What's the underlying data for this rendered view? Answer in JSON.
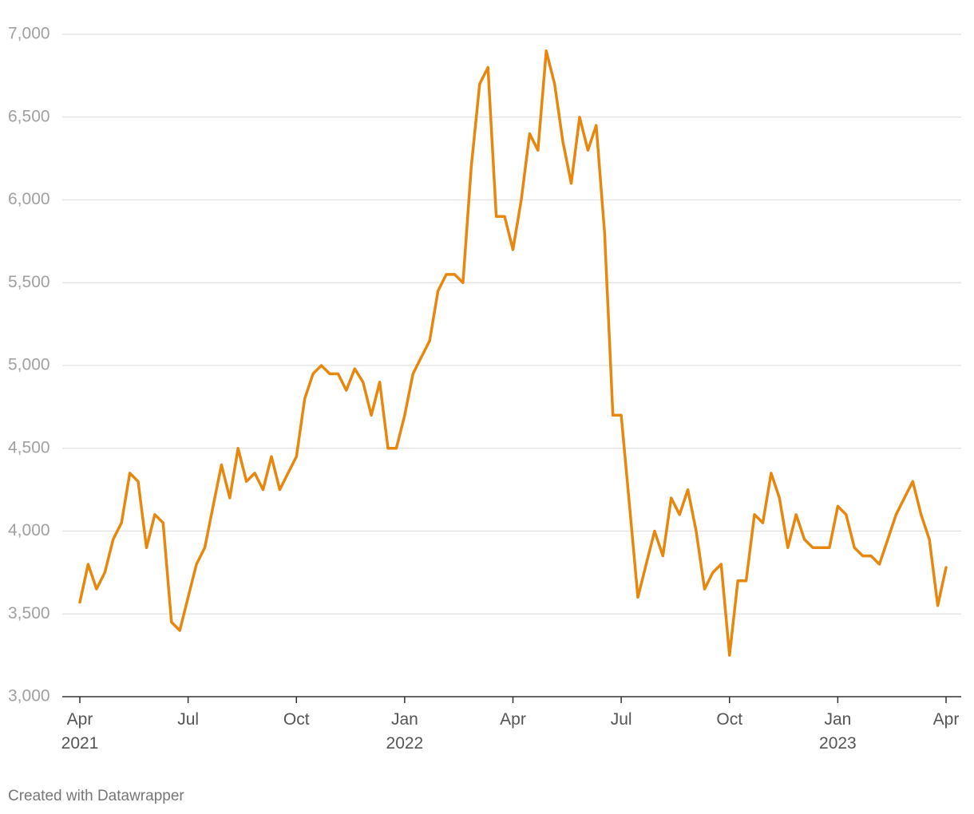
{
  "chart_data": {
    "type": "line",
    "footer": "Created with Datawrapper",
    "categories": [
      "Apr 2021",
      null,
      null,
      null,
      null,
      null,
      null,
      null,
      null,
      null,
      null,
      null,
      null,
      "Jul",
      null,
      null,
      null,
      null,
      null,
      null,
      null,
      null,
      null,
      null,
      null,
      null,
      "Oct",
      null,
      null,
      null,
      null,
      null,
      null,
      null,
      null,
      null,
      null,
      null,
      null,
      "Jan 2022",
      null,
      null,
      null,
      null,
      null,
      null,
      null,
      null,
      null,
      null,
      null,
      null,
      "Apr",
      null,
      null,
      null,
      null,
      null,
      null,
      null,
      null,
      null,
      null,
      null,
      null,
      "Jul",
      null,
      null,
      null,
      null,
      null,
      null,
      null,
      null,
      null,
      null,
      null,
      null,
      "Oct",
      null,
      null,
      null,
      null,
      null,
      null,
      null,
      null,
      null,
      null,
      null,
      null,
      "Jan 2023",
      null,
      null,
      null,
      null,
      null,
      null,
      null,
      null,
      null,
      null,
      null,
      null,
      "Apr"
    ],
    "series": [
      {
        "name": null,
        "color": "#e8870e",
        "values": [
          3570,
          3800,
          3650,
          3750,
          3950,
          4050,
          4350,
          4300,
          3900,
          4100,
          4050,
          3450,
          3400,
          3600,
          3800,
          3900,
          4150,
          4400,
          4200,
          4500,
          4300,
          4350,
          4250,
          4450,
          4250,
          4350,
          4450,
          4800,
          4950,
          5000,
          4950,
          4950,
          4850,
          4980,
          4900,
          4700,
          4900,
          4500,
          4500,
          4700,
          4950,
          5050,
          5150,
          5450,
          5550,
          5550,
          5500,
          6200,
          6700,
          6800,
          5900,
          5900,
          5700,
          6000,
          6400,
          6300,
          6900,
          6700,
          6350,
          6100,
          6500,
          6300,
          6450,
          5800,
          4700,
          4700,
          4150,
          3600,
          3800,
          4000,
          3850,
          4200,
          4100,
          4250,
          4000,
          3650,
          3750,
          3800,
          3250,
          3700,
          3700,
          4100,
          4050,
          4350,
          4200,
          3900,
          4100,
          3950,
          3900,
          3900,
          3900,
          4150,
          4100,
          3900,
          3850,
          3850,
          3800,
          3950,
          4100,
          4200,
          4300,
          4100,
          3950,
          3550,
          3780
        ]
      }
    ],
    "ylim": [
      3000,
      7000
    ],
    "yticks": [
      {
        "value": 3000,
        "label": "3,000"
      },
      {
        "value": 3500,
        "label": "3,500"
      },
      {
        "value": 4000,
        "label": "4,000"
      },
      {
        "value": 4500,
        "label": "4,500"
      },
      {
        "value": 5000,
        "label": "5,000"
      },
      {
        "value": 5500,
        "label": "5,500"
      },
      {
        "value": 6000,
        "label": "6,000"
      },
      {
        "value": 6500,
        "label": "6,500"
      },
      {
        "value": 7000,
        "label": "7,000"
      }
    ],
    "grid": true
  }
}
